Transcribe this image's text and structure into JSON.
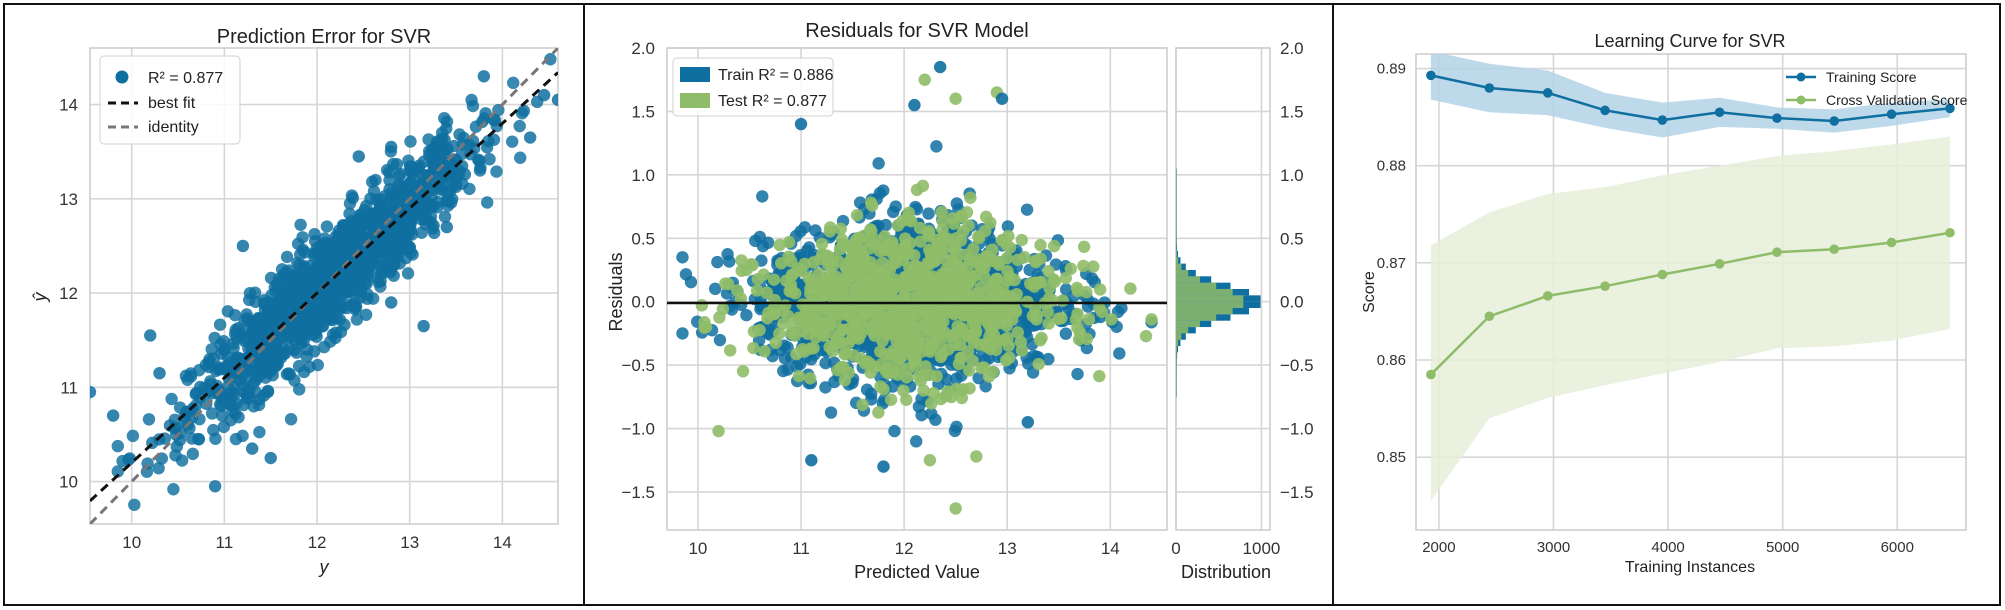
{
  "colors": {
    "blue": "#0f6fa0",
    "green": "#8fbc68",
    "blue_fill": "#b3d2e6",
    "green_fill": "#e6efd9"
  },
  "chart_data": [
    {
      "type": "scatter",
      "title": "Prediction Error for SVR",
      "xlabel": "y",
      "ylabel": "ŷ",
      "xlim": [
        9.55,
        14.6
      ],
      "ylim": [
        9.55,
        14.6
      ],
      "xticks": [
        "10",
        "11",
        "12",
        "13",
        "14"
      ],
      "yticks": [
        "10",
        "11",
        "12",
        "13",
        "14"
      ],
      "legend": [
        "R² = 0.877",
        "best fit",
        "identity"
      ],
      "r2": 0.877,
      "best_fit": {
        "slope": 0.9,
        "intercept": 1.2
      },
      "n_points": 1400,
      "points_outliers": [
        [
          9.55,
          10.95
        ],
        [
          9.8,
          10.7
        ],
        [
          10.3,
          11.15
        ],
        [
          10.9,
          9.95
        ],
        [
          10.2,
          11.55
        ],
        [
          11.3,
          11.7
        ],
        [
          11.5,
          10.25
        ],
        [
          11.3,
          10.35
        ],
        [
          12.8,
          11.9
        ],
        [
          13.15,
          11.65
        ],
        [
          13.4,
          12.7
        ],
        [
          12.8,
          13.55
        ],
        [
          11.2,
          12.5
        ],
        [
          12.45,
          13.45
        ],
        [
          13.8,
          14.3
        ],
        [
          14.3,
          13.65
        ],
        [
          14.45,
          14.1
        ],
        [
          14.6,
          14.05
        ],
        [
          12.2,
          12.4
        ],
        [
          12.15,
          12.05
        ]
      ]
    },
    {
      "type": "scatter",
      "title": "Residuals for SVR Model",
      "xlabel": "Predicted Value",
      "ylabel": "Residuals",
      "xlim": [
        9.7,
        14.55
      ],
      "ylim": [
        -1.8,
        2.0
      ],
      "xticks": [
        "10",
        "11",
        "12",
        "13",
        "14"
      ],
      "yticks": [
        "−1.5",
        "−1.0",
        "−0.5",
        "0.0",
        "0.5",
        "1.0",
        "1.5",
        "2.0"
      ],
      "series": [
        {
          "name": "Train R² = 0.886",
          "r2": 0.886,
          "n_points": 1500
        },
        {
          "name": "Test R² = 0.877",
          "r2": 0.877,
          "n_points": 900
        }
      ],
      "highlight_points": [
        [
          12.35,
          1.85
        ],
        [
          12.9,
          1.65
        ],
        [
          12.95,
          1.6
        ],
        [
          12.2,
          1.75
        ],
        [
          12.1,
          1.55
        ],
        [
          12.5,
          1.6
        ],
        [
          11.0,
          1.4
        ],
        [
          12.5,
          -1.63
        ],
        [
          11.8,
          -1.3
        ],
        [
          10.2,
          -1.02
        ],
        [
          11.1,
          -1.25
        ],
        [
          12.7,
          -1.22
        ],
        [
          13.2,
          -0.95
        ],
        [
          12.25,
          -1.25
        ]
      ],
      "distribution": {
        "xlabel": "Distribution",
        "xlim": [
          0,
          1100
        ],
        "xticks": [
          "0",
          "1000"
        ],
        "yticks": [
          "−1.5",
          "−1.0",
          "−0.5",
          "0.0",
          "0.5",
          "1.0",
          "1.5",
          "2.0"
        ]
      }
    },
    {
      "type": "line",
      "title": "Learning Curve for SVR",
      "xlabel": "Training Instances",
      "ylabel": "Score",
      "xlim": [
        1800,
        6600
      ],
      "ylim": [
        0.8425,
        0.8915
      ],
      "xticks": [
        "2000",
        "3000",
        "4000",
        "5000",
        "6000"
      ],
      "yticks": [
        "0.85",
        "0.86",
        "0.87",
        "0.88",
        "0.89"
      ],
      "x": [
        1930,
        2440,
        2950,
        3450,
        3950,
        4450,
        4950,
        5450,
        5950,
        6460
      ],
      "series": [
        {
          "name": "Training Score",
          "values": [
            0.8893,
            0.888,
            0.8875,
            0.8857,
            0.8847,
            0.8855,
            0.8849,
            0.8846,
            0.8853,
            0.8859
          ],
          "band_upper": [
            0.8918,
            0.8905,
            0.8898,
            0.8875,
            0.8865,
            0.887,
            0.886,
            0.8858,
            0.8865,
            0.8868
          ],
          "band_lower": [
            0.8868,
            0.8855,
            0.8852,
            0.8839,
            0.8829,
            0.884,
            0.8838,
            0.8834,
            0.8841,
            0.885
          ]
        },
        {
          "name": "Cross Validation Score",
          "values": [
            0.8585,
            0.8645,
            0.8666,
            0.8676,
            0.8688,
            0.8699,
            0.8711,
            0.8714,
            0.8721,
            0.8731
          ],
          "band_upper": [
            0.8718,
            0.8752,
            0.8771,
            0.8778,
            0.879,
            0.88,
            0.881,
            0.8815,
            0.8822,
            0.883
          ],
          "band_lower": [
            0.8455,
            0.854,
            0.8561,
            0.8574,
            0.8586,
            0.8598,
            0.8612,
            0.8614,
            0.862,
            0.8632
          ]
        }
      ]
    }
  ]
}
